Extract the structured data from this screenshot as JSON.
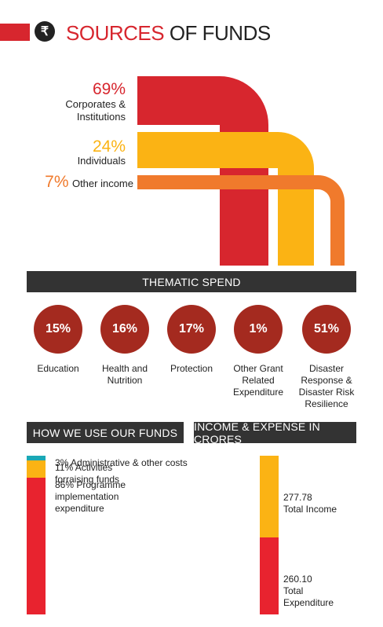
{
  "header": {
    "icon_glyph": "₹",
    "title_part1": "SOURCES",
    "title_part2": "OF FUNDS"
  },
  "sources": [
    {
      "percent": "69%",
      "label_line1": "Corporates &",
      "label_line2": "Institutions",
      "value": 69,
      "color": "#d7262e"
    },
    {
      "percent": "24%",
      "label_line1": "Individuals",
      "label_line2": "",
      "value": 24,
      "color": "#fbb314"
    },
    {
      "percent": "7%",
      "label_line1": "Other income",
      "label_line2": "",
      "value": 7,
      "color": "#f07a2c"
    }
  ],
  "thematic": {
    "title": "THEMATIC SPEND",
    "items": [
      {
        "percent": "15%",
        "label": "Education"
      },
      {
        "percent": "16%",
        "label": "Health and\nNutrition"
      },
      {
        "percent": "17%",
        "label": "Protection"
      },
      {
        "percent": "1%",
        "label": "Other Grant\nRelated\nExpenditure"
      },
      {
        "percent": "51%",
        "label": "Disaster\nResponse &\nDisaster Risk\nResilience"
      }
    ]
  },
  "use_funds": {
    "title": "HOW WE USE OUR FUNDS",
    "items": [
      {
        "text": "3% Administrative & other costs",
        "value": 3,
        "color": "#1ba8b5"
      },
      {
        "text": "11% Activities\nforraising funds",
        "value": 11,
        "color": "#fbb314"
      },
      {
        "text": "86% Programme\nimplementation\nexpenditure",
        "value": 86,
        "color": "#e8232f"
      }
    ]
  },
  "income_expense": {
    "title": "INCOME & EXPENSE IN CRORES",
    "items": [
      {
        "value_text": "277.78",
        "label": "Total Income",
        "value": 277.78,
        "color": "#fbb314"
      },
      {
        "value_text": "260.10",
        "label": "Total\nExpenditure",
        "value": 260.1,
        "color": "#e8232f"
      }
    ]
  },
  "colors": {
    "red": "#d7262e",
    "yellow": "#fbb314",
    "orange": "#f07a2c",
    "teal": "#1ba8b5",
    "circle": "#a42a1f",
    "dark_bar": "#333333"
  }
}
